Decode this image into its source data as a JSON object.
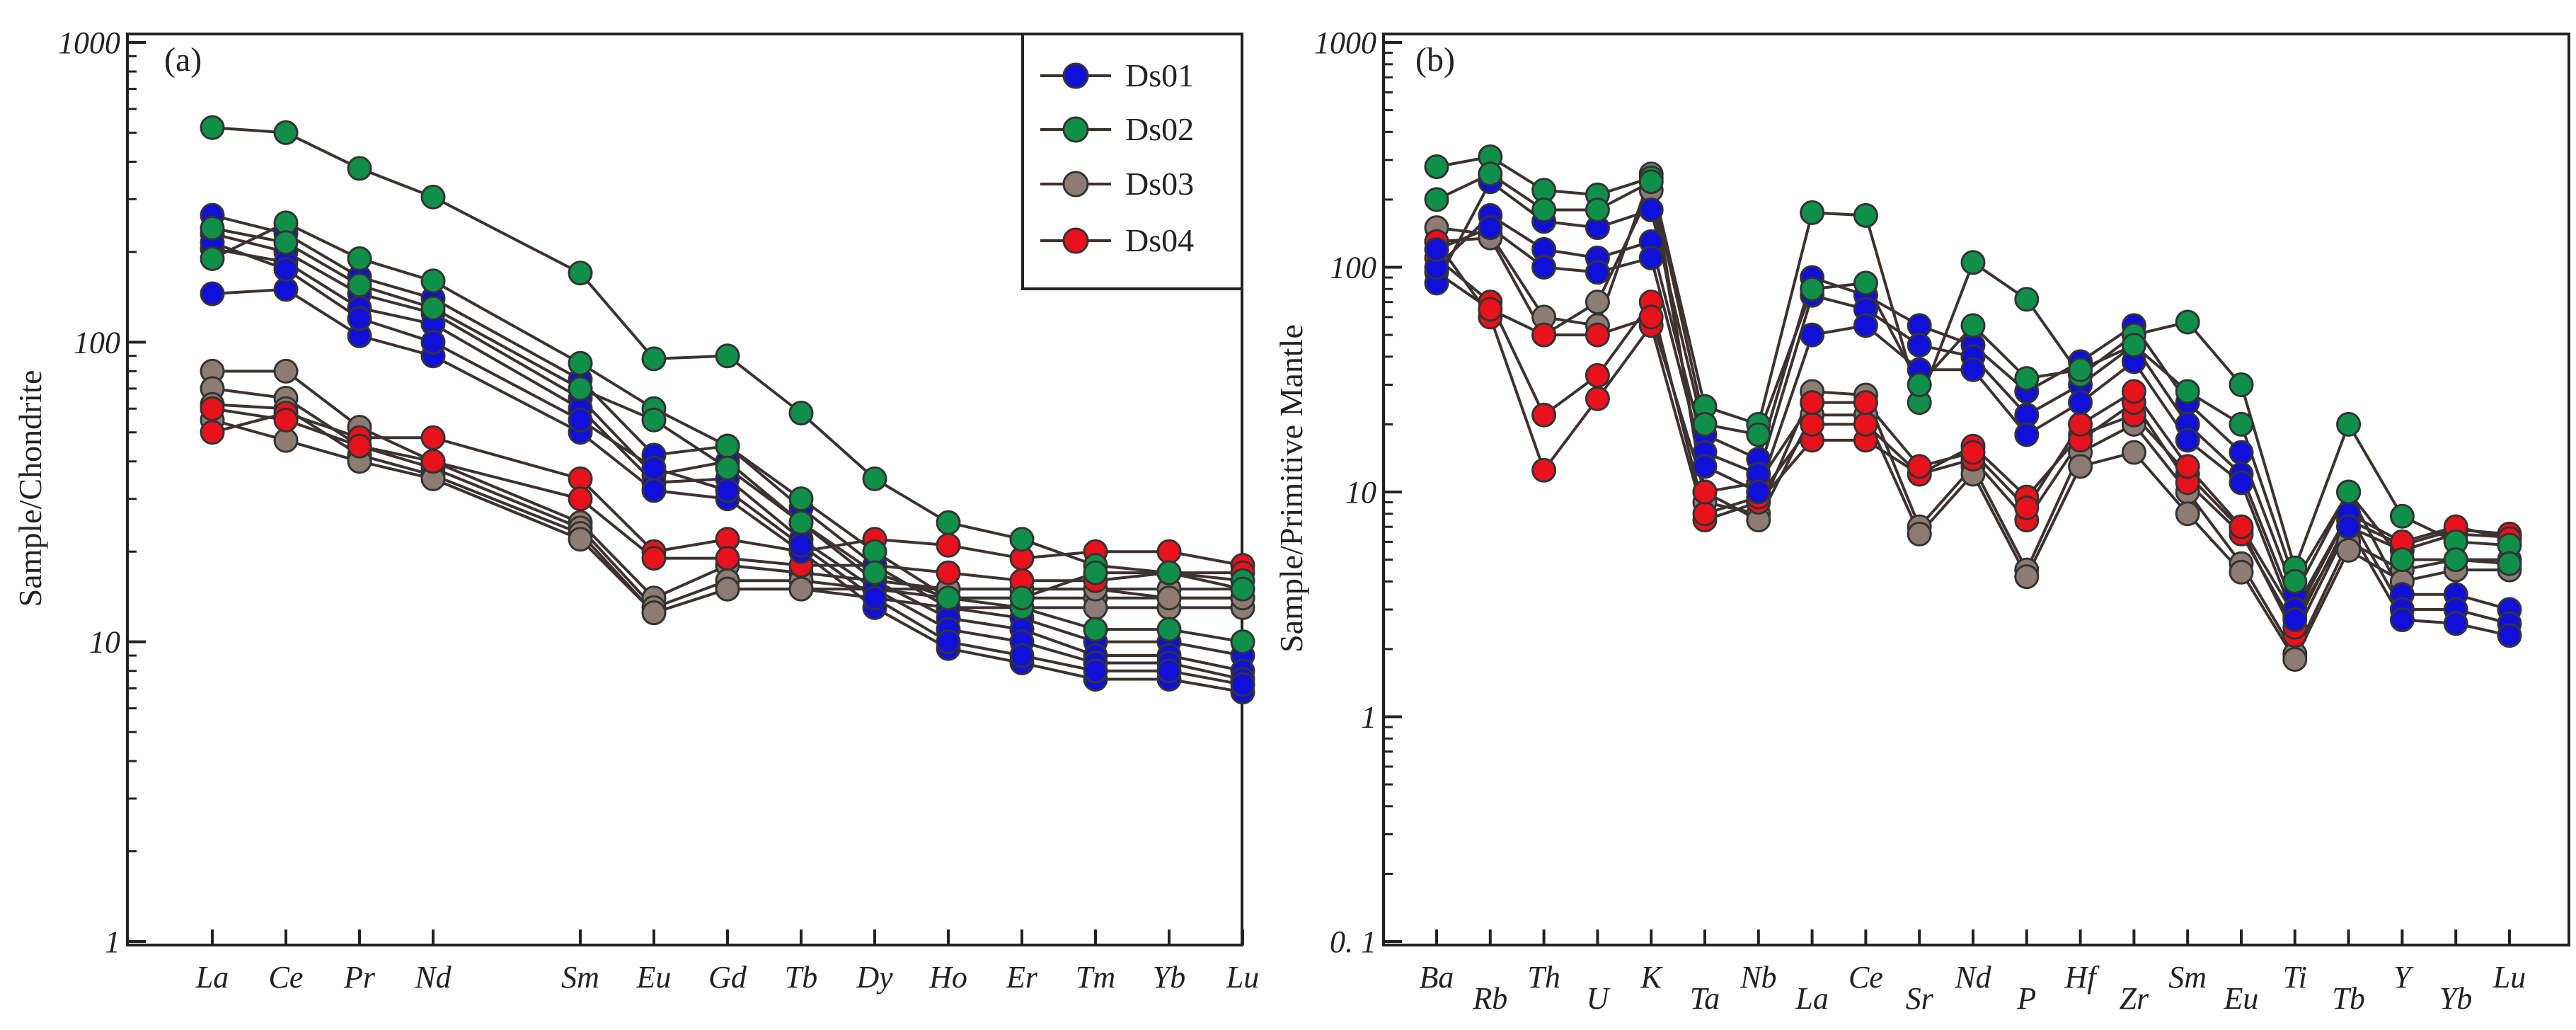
{
  "figure": {
    "panels": [
      "(a)",
      "(b)"
    ]
  },
  "chart_data": [
    {
      "type": "line",
      "panel_label": "(a)",
      "ylabel": "Sample/Chondrite",
      "yscale": "log",
      "ylim": [
        1,
        1000
      ],
      "yticks": [
        "1",
        "10",
        "100",
        "1000"
      ],
      "categories": [
        "La",
        "Ce",
        "Pr",
        "Nd",
        "Sm",
        "Eu",
        "Gd",
        "Tb",
        "Dy",
        "Ho",
        "Er",
        "Tm",
        "Yb",
        "Lu"
      ],
      "x_positions": [
        1,
        2,
        3,
        4,
        6,
        7,
        8,
        9,
        10,
        11,
        12,
        13,
        14,
        15
      ],
      "legend": {
        "placement": "top-right",
        "entries": [
          "Ds01",
          "Ds02",
          "Ds03",
          "Ds04"
        ]
      },
      "colors": {
        "Ds01": "#1010d8",
        "Ds02": "#0f8f4a",
        "Ds03": "#8c7c74",
        "Ds04": "#e8121c"
      },
      "line_color": "#3c3230",
      "series": [
        {
          "group": "Ds01",
          "values": [
            265,
            230,
            165,
            140,
            75,
            42,
            45,
            28,
            18,
            13,
            12,
            10,
            10,
            9
          ]
        },
        {
          "group": "Ds01",
          "values": [
            230,
            200,
            145,
            125,
            65,
            36,
            40,
            25,
            16,
            12,
            11,
            9,
            9,
            8
          ]
        },
        {
          "group": "Ds01",
          "values": [
            205,
            185,
            130,
            115,
            60,
            34,
            35,
            22,
            15,
            11,
            10,
            8.5,
            8.5,
            7.5
          ]
        },
        {
          "group": "Ds01",
          "values": [
            145,
            150,
            105,
            90,
            50,
            32,
            30,
            20,
            13,
            9.5,
            8.5,
            7.5,
            7.5,
            6.8
          ]
        },
        {
          "group": "Ds01",
          "values": [
            215,
            175,
            120,
            100,
            55,
            38,
            32,
            21,
            14,
            10,
            9,
            8,
            8,
            7.2
          ]
        },
        {
          "group": "Ds02",
          "values": [
            520,
            500,
            380,
            305,
            170,
            88,
            90,
            58,
            35,
            25,
            22,
            18,
            17,
            16
          ]
        },
        {
          "group": "Ds02",
          "values": [
            190,
            250,
            190,
            160,
            85,
            60,
            45,
            30,
            20,
            14,
            13,
            11,
            11,
            10
          ]
        },
        {
          "group": "Ds02",
          "values": [
            240,
            215,
            155,
            130,
            70,
            55,
            38,
            25,
            17,
            14,
            14,
            17,
            17,
            15
          ]
        },
        {
          "group": "Ds03",
          "values": [
            80,
            80,
            52,
            40,
            25,
            14,
            18,
            17,
            16,
            15,
            15,
            15,
            15,
            15
          ]
        },
        {
          "group": "Ds03",
          "values": [
            70,
            65,
            45,
            38,
            24,
            13,
            16,
            16,
            15,
            14,
            14,
            14,
            14,
            14
          ]
        },
        {
          "group": "Ds03",
          "values": [
            62,
            60,
            42,
            36,
            23,
            12.5,
            15,
            15,
            14,
            13,
            13,
            13,
            13,
            13
          ]
        },
        {
          "group": "Ds03",
          "values": [
            55,
            47,
            40,
            35,
            22,
            12.5,
            15,
            15,
            15,
            15,
            15,
            15,
            14,
            14
          ]
        },
        {
          "group": "Ds04",
          "values": [
            50,
            58,
            48,
            48,
            35,
            20,
            22,
            20,
            22,
            21,
            19,
            20,
            20,
            18
          ]
        },
        {
          "group": "Ds04",
          "values": [
            60,
            55,
            45,
            40,
            30,
            19,
            19,
            18,
            18,
            17,
            16,
            16,
            17,
            17
          ]
        }
      ]
    },
    {
      "type": "line",
      "panel_label": "(b)",
      "ylabel": "Sample/Primitive  Mantle",
      "yscale": "log",
      "ylim": [
        0.1,
        1000
      ],
      "yticks": [
        "0. 1",
        "1",
        "10",
        "100",
        "1000"
      ],
      "categories": [
        "Ba",
        "Rb",
        "Th",
        "U",
        "K",
        "Ta",
        "Nb",
        "La",
        "Ce",
        "Sr",
        "Nd",
        "P",
        "Hf",
        "Zr",
        "Sm",
        "Eu",
        "Ti",
        "Tb",
        "Y",
        "Yb",
        "Lu"
      ],
      "x_positions": [
        1,
        2,
        3,
        4,
        5,
        6,
        7,
        8,
        9,
        10,
        11,
        12,
        13,
        14,
        15,
        16,
        17,
        18,
        19,
        20,
        21
      ],
      "colors": {
        "Ds01": "#1010d8",
        "Ds02": "#0f8f4a",
        "Ds03": "#8c7c74",
        "Ds04": "#e8121c"
      },
      "line_color": "#3c3230",
      "series": [
        {
          "group": "Ds01",
          "values": [
            85,
            240,
            160,
            150,
            180,
            18,
            14,
            90,
            75,
            55,
            45,
            28,
            38,
            55,
            25,
            15,
            3.5,
            10,
            3.5,
            3.5,
            3.0
          ]
        },
        {
          "group": "Ds01",
          "values": [
            100,
            170,
            120,
            110,
            130,
            15,
            12,
            75,
            65,
            45,
            40,
            22,
            30,
            45,
            20,
            12,
            3.0,
            8,
            3.0,
            3.0,
            2.6
          ]
        },
        {
          "group": "Ds01",
          "values": [
            120,
            150,
            100,
            95,
            110,
            13,
            10,
            50,
            55,
            35,
            35,
            18,
            25,
            38,
            17,
            11,
            2.7,
            7,
            2.7,
            2.6,
            2.3
          ]
        },
        {
          "group": "Ds02",
          "values": [
            280,
            310,
            220,
            210,
            250,
            24,
            20,
            175,
            170,
            25,
            105,
            72,
            33,
            50,
            57,
            30,
            4.6,
            20,
            7.8,
            6.0,
            5.8
          ]
        },
        {
          "group": "Ds02",
          "values": [
            200,
            260,
            180,
            180,
            240,
            20,
            18,
            80,
            85,
            30,
            55,
            32,
            35,
            45,
            28,
            20,
            4.0,
            10,
            5.0,
            5.0,
            4.8
          ]
        },
        {
          "group": "Ds03",
          "values": [
            150,
            140,
            60,
            55,
            260,
            9,
            8,
            28,
            27,
            7,
            13,
            4.5,
            15,
            20,
            10,
            4.8,
            1.9,
            6,
            4.5,
            5.0,
            5.0
          ]
        },
        {
          "group": "Ds03",
          "values": [
            130,
            135,
            50,
            70,
            220,
            10,
            7.5,
            22,
            22,
            6.5,
            12,
            4.2,
            13,
            15,
            8,
            4.4,
            1.8,
            5.5,
            4.0,
            4.5,
            4.5
          ]
        },
        {
          "group": "Ds04",
          "values": [
            130,
            60,
            12.5,
            26,
            55,
            7.5,
            9,
            17,
            17,
            12,
            16,
            9.5,
            18,
            22,
            12,
            6.8,
            2.3,
            7,
            5.5,
            6.5,
            6.3
          ]
        },
        {
          "group": "Ds04",
          "values": [
            110,
            70,
            22,
            33,
            70,
            8,
            9.5,
            20,
            20,
            12,
            14,
            7.5,
            17,
            25,
            11,
            6.5,
            2.5,
            7.5,
            5.8,
            6.8,
            6.5
          ]
        },
        {
          "group": "Ds04",
          "values": [
            95,
            65,
            50,
            50,
            60,
            10,
            11,
            25,
            25,
            13,
            15,
            8.5,
            20,
            28,
            13,
            7,
            2.8,
            8,
            6,
            7,
            6.2
          ]
        }
      ]
    }
  ]
}
